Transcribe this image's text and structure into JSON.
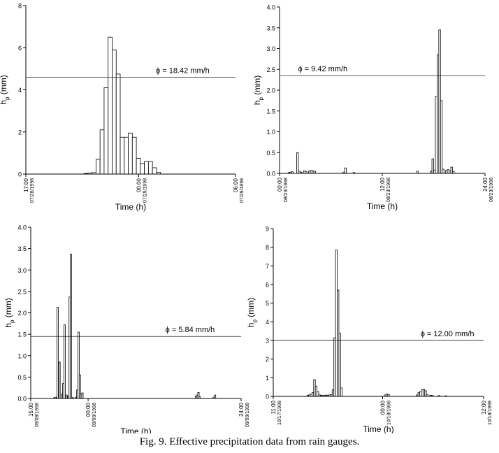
{
  "caption": "Fig. 9. Effective precipitation data from rain gauges.",
  "chart_data": [
    {
      "type": "bar",
      "xlabel": "Time (h)",
      "ylabel": "h",
      "ylabel_sub": "p",
      "ylabel_unit": "(mm)",
      "xlim": [
        0,
        13
      ],
      "ylim": [
        0,
        8
      ],
      "yticks": [
        0,
        2,
        4,
        6,
        8
      ],
      "yticks_fmt": 0,
      "xticks": [
        {
          "x": 0,
          "time": "17:00",
          "date": "07/28/1998"
        },
        {
          "x": 7,
          "time": "00:00",
          "date": "07/29/1998"
        },
        {
          "x": 13,
          "time": "06:00",
          "date": "07/29/1998"
        }
      ],
      "bar_x0": 3.6,
      "bar_width": 0.25,
      "values": [
        0.03,
        0.05,
        0.07,
        0.7,
        2.1,
        4.1,
        6.5,
        5.9,
        4.75,
        1.75,
        1.75,
        1.95,
        1.75,
        0.75,
        0.5,
        0.6,
        0.6,
        0.3,
        0.08
      ],
      "threshold": 4.6,
      "threshold_label": "ϕ = 18.42 mm/h"
    },
    {
      "type": "bar",
      "xlabel": "Time (h)",
      "ylabel": "h",
      "ylabel_sub": "p",
      "ylabel_unit": "(mm)",
      "xlim": [
        0,
        24
      ],
      "ylim": [
        0,
        4
      ],
      "yticks": [
        0,
        0.5,
        1.0,
        1.5,
        2.0,
        2.5,
        3.0,
        3.5,
        4.0
      ],
      "yticks_fmt": 1,
      "xticks": [
        {
          "x": 0,
          "time": "00:00",
          "date": "08/23/1998"
        },
        {
          "x": 12,
          "time": "12:00",
          "date": "08/23/1998"
        },
        {
          "x": 24,
          "time": "24:00",
          "date": "08/23/1998"
        }
      ],
      "bar_width": 0.2,
      "bars": [
        [
          1.0,
          0.02
        ],
        [
          1.2,
          0.03
        ],
        [
          1.4,
          0.04
        ],
        [
          2.0,
          0.5
        ],
        [
          2.2,
          0.05
        ],
        [
          2.4,
          0.03
        ],
        [
          2.8,
          0.06
        ],
        [
          3.0,
          0.04
        ],
        [
          3.4,
          0.06
        ],
        [
          3.6,
          0.07
        ],
        [
          3.8,
          0.06
        ],
        [
          4.0,
          0.05
        ],
        [
          7.4,
          0.03
        ],
        [
          7.6,
          0.13
        ],
        [
          8.6,
          0.02
        ],
        [
          16.0,
          0.05
        ],
        [
          17.6,
          0.05
        ],
        [
          17.8,
          0.35
        ],
        [
          18.0,
          0.08
        ],
        [
          18.2,
          1.85
        ],
        [
          18.4,
          2.85
        ],
        [
          18.6,
          3.45
        ],
        [
          18.8,
          1.75
        ],
        [
          19.0,
          0.1
        ],
        [
          19.4,
          0.07
        ],
        [
          19.6,
          0.09
        ],
        [
          19.8,
          0.06
        ],
        [
          20.0,
          0.15
        ],
        [
          20.2,
          0.05
        ]
      ],
      "threshold": 2.35,
      "threshold_label": "ϕ = 9.42 mm/h"
    },
    {
      "type": "bar",
      "xlabel": "Time (h)",
      "ylabel": "h",
      "ylabel_sub": "p",
      "ylabel_unit": "(mm)",
      "xlim": [
        0,
        33
      ],
      "ylim": [
        0,
        4
      ],
      "yticks": [
        0,
        0.5,
        1.0,
        1.5,
        2.0,
        2.5,
        3.0,
        3.5,
        4.0
      ],
      "yticks_fmt": 1,
      "xticks": [
        {
          "x": 0,
          "time": "15:00",
          "date": "09/08/1998"
        },
        {
          "x": 9,
          "time": "00:00",
          "date": "09/09/1998"
        },
        {
          "x": 33,
          "time": "24:00",
          "date": "09/09/1998"
        }
      ],
      "bar_width": 0.22,
      "bars": [
        [
          3.6,
          0.02
        ],
        [
          3.8,
          0.03
        ],
        [
          4.1,
          2.13
        ],
        [
          4.4,
          0.85
        ],
        [
          4.8,
          0.1
        ],
        [
          5.0,
          0.35
        ],
        [
          5.2,
          1.72
        ],
        [
          5.5,
          0.08
        ],
        [
          5.8,
          0.05
        ],
        [
          6.0,
          2.37
        ],
        [
          6.2,
          3.37
        ],
        [
          6.5,
          0.02
        ],
        [
          7.0,
          0.03
        ],
        [
          7.2,
          0.2
        ],
        [
          7.4,
          1.55
        ],
        [
          7.6,
          0.55
        ],
        [
          7.8,
          0.1
        ],
        [
          8.0,
          0.13
        ],
        [
          25.8,
          0.05
        ],
        [
          26.0,
          0.08
        ],
        [
          26.2,
          0.14
        ],
        [
          26.4,
          0.04
        ],
        [
          28.6,
          0.03
        ],
        [
          28.8,
          0.08
        ]
      ],
      "threshold": 1.45,
      "threshold_label": "ϕ = 5.84 mm/h"
    },
    {
      "type": "bar",
      "xlabel": "Time (h)",
      "ylabel": "h",
      "ylabel_sub": "p",
      "ylabel_unit": "(mm)",
      "xlim": [
        0,
        25
      ],
      "ylim": [
        0,
        9
      ],
      "yticks": [
        0,
        1,
        2,
        3,
        4,
        5,
        6,
        7,
        8,
        9
      ],
      "yticks_fmt": 0,
      "xticks": [
        {
          "x": 0,
          "time": "11:00",
          "date": "10/17/1998"
        },
        {
          "x": 13,
          "time": "00:00",
          "date": "10/18/1998"
        },
        {
          "x": 25,
          "time": "12:00",
          "date": "10/18/1998"
        }
      ],
      "bar_width": 0.2,
      "bars": [
        [
          4.0,
          0.05
        ],
        [
          4.2,
          0.08
        ],
        [
          4.4,
          0.12
        ],
        [
          4.6,
          0.2
        ],
        [
          4.8,
          0.9
        ],
        [
          5.0,
          0.55
        ],
        [
          5.2,
          0.25
        ],
        [
          5.4,
          0.08
        ],
        [
          5.6,
          0.05
        ],
        [
          5.8,
          0.06
        ],
        [
          6.0,
          0.05
        ],
        [
          6.2,
          0.07
        ],
        [
          6.4,
          0.06
        ],
        [
          6.6,
          0.08
        ],
        [
          6.8,
          0.1
        ],
        [
          7.0,
          0.35
        ],
        [
          7.2,
          3.15
        ],
        [
          7.4,
          7.85
        ],
        [
          7.6,
          5.7
        ],
        [
          7.8,
          3.4
        ],
        [
          8.0,
          0.45
        ],
        [
          13.2,
          0.08
        ],
        [
          13.4,
          0.12
        ],
        [
          13.6,
          0.1
        ],
        [
          17.0,
          0.08
        ],
        [
          17.2,
          0.2
        ],
        [
          17.4,
          0.25
        ],
        [
          17.6,
          0.35
        ],
        [
          17.8,
          0.38
        ],
        [
          18.0,
          0.3
        ],
        [
          18.2,
          0.1
        ],
        [
          18.6,
          0.06
        ],
        [
          18.8,
          0.05
        ],
        [
          19.6,
          0.04
        ],
        [
          20.4,
          0.03
        ]
      ],
      "threshold": 3.0,
      "threshold_label": "ϕ = 12.00 mm/h"
    }
  ]
}
